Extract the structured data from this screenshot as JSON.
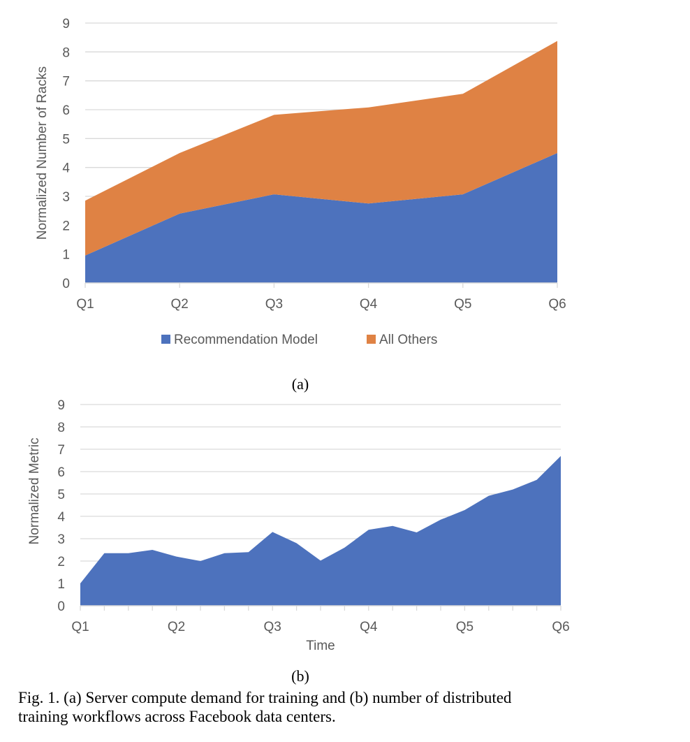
{
  "chart_data": [
    {
      "type": "area",
      "stacked": true,
      "panel_label": "(a)",
      "title": "",
      "xlabel": "",
      "ylabel": "Normalized Number of Racks",
      "categories": [
        "Q1",
        "Q2",
        "Q3",
        "Q4",
        "Q5",
        "Q6"
      ],
      "ylim": [
        0,
        9
      ],
      "yticks": [
        "0",
        "1",
        "2",
        "3",
        "4",
        "5",
        "6",
        "7",
        "8",
        "9"
      ],
      "grid": true,
      "legend_position": "bottom",
      "series": [
        {
          "name": "Recommendation Model",
          "color": "#4d72bd",
          "values": [
            0.95,
            2.4,
            3.07,
            2.75,
            3.07,
            4.5
          ]
        },
        {
          "name": "All Others",
          "color": "#df8244",
          "values": [
            1.9,
            2.1,
            2.75,
            3.33,
            3.48,
            3.88
          ]
        }
      ]
    },
    {
      "type": "area",
      "stacked": false,
      "panel_label": "(b)",
      "title": "",
      "xlabel": "Time",
      "ylabel": "Normalized Metric",
      "categories": [
        "Q1",
        "Q2",
        "Q3",
        "Q4",
        "Q5",
        "Q6"
      ],
      "x_points_per_interval": 4,
      "ylim": [
        0,
        9
      ],
      "yticks": [
        "0",
        "1",
        "2",
        "3",
        "4",
        "5",
        "6",
        "7",
        "8",
        "9"
      ],
      "grid": true,
      "legend_position": "none",
      "series": [
        {
          "name": "Distributed training workflows",
          "color": "#4d72bd",
          "values": [
            1.0,
            2.35,
            2.35,
            2.5,
            2.2,
            2.0,
            2.35,
            2.4,
            3.3,
            2.8,
            2.02,
            2.6,
            3.4,
            3.57,
            3.28,
            3.85,
            4.28,
            4.92,
            5.2,
            5.63,
            6.7
          ]
        }
      ]
    }
  ],
  "caption": {
    "line1": "Fig. 1.  (a) Server compute demand for training and (b) number of distributed",
    "line2": "training workflows across Facebook data centers."
  }
}
